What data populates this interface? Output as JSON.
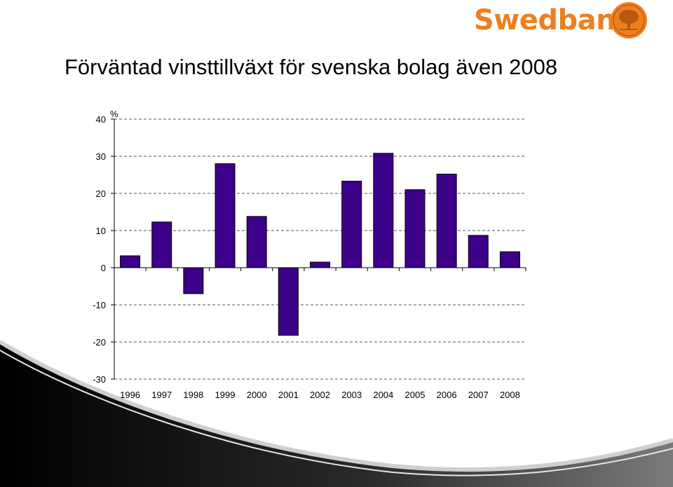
{
  "slide": {
    "title": "Förväntad vinsttillväxt för svenska bolag även 2008"
  },
  "logo": {
    "text": "Swedbank",
    "icon": "oak-tree-seal-icon",
    "color": "#ee7f1f"
  },
  "chart_data": {
    "type": "bar",
    "title": "Förväntad vinsttillväxt för svenska bolag även 2008",
    "ylabel": "%",
    "categories": [
      "1996",
      "1997",
      "1998",
      "1999",
      "2000",
      "2001",
      "2002",
      "2003",
      "2004",
      "2005",
      "2006",
      "2007",
      "2008"
    ],
    "values": [
      3.2,
      12.3,
      -7.0,
      28.0,
      13.8,
      -18.2,
      1.5,
      23.3,
      30.8,
      21.0,
      25.2,
      8.7,
      4.3
    ],
    "ylim": [
      -30,
      40
    ],
    "yticks": [
      "40",
      "30",
      "20",
      "10",
      "0",
      "-10",
      "-20",
      "-30"
    ],
    "grid": true,
    "bar_color": "#3d0088"
  }
}
